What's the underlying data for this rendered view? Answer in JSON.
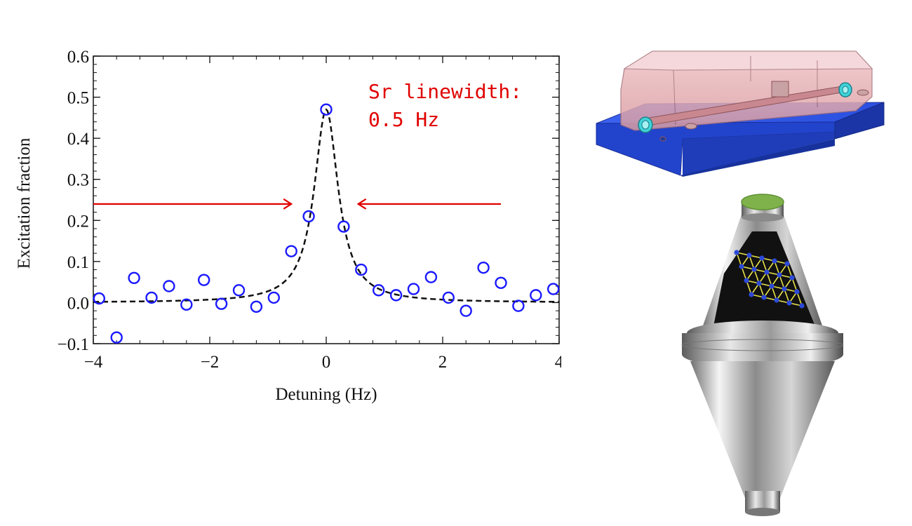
{
  "chart_data": {
    "type": "scatter",
    "title": "",
    "xlabel": "Detuning (Hz)",
    "ylabel": "Excitation fraction",
    "xlim": [
      -4,
      4
    ],
    "ylim": [
      -0.1,
      0.6
    ],
    "xticks": [
      -4,
      -2,
      0,
      2,
      4
    ],
    "xtick_labels": [
      "−4",
      "−2",
      "0",
      "2",
      "4"
    ],
    "yticks": [
      -0.1,
      0.0,
      0.1,
      0.2,
      0.3,
      0.4,
      0.5,
      0.6
    ],
    "ytick_labels": [
      "−0.1",
      "0.0",
      "0.1",
      "0.2",
      "0.3",
      "0.4",
      "0.5",
      "0.6"
    ],
    "grid": false,
    "series": [
      {
        "style": "open-circle markers",
        "color": "#1a1aff",
        "x": [
          -3.9,
          -3.6,
          -3.3,
          -3.0,
          -2.7,
          -2.4,
          -2.1,
          -1.8,
          -1.5,
          -1.2,
          -0.9,
          -0.6,
          -0.3,
          0.0,
          0.3,
          0.6,
          0.9,
          1.2,
          1.5,
          1.8,
          2.1,
          2.4,
          2.7,
          3.0,
          3.3,
          3.6,
          3.9
        ],
        "y": [
          0.01,
          -0.085,
          0.06,
          0.012,
          0.04,
          -0.005,
          0.055,
          -0.003,
          0.03,
          -0.01,
          0.012,
          0.125,
          0.21,
          0.47,
          0.185,
          0.08,
          0.03,
          0.018,
          0.033,
          0.062,
          0.012,
          -0.02,
          0.085,
          0.048,
          -0.008,
          0.018,
          0.033
        ]
      },
      {
        "style": "dashed line",
        "color": "#111111",
        "function": "lorentzian",
        "amplitude": 0.47,
        "center": 0.0,
        "fwhm": 0.5
      }
    ],
    "annotations": [
      {
        "text": "Sr linewidth:",
        "color": "#e00000"
      },
      {
        "text": "0.5  Hz",
        "color": "#e00000"
      }
    ],
    "arrows": [
      {
        "from": [
          -4.0,
          0.24
        ],
        "to": [
          -0.6,
          0.24
        ],
        "color": "#e00000"
      },
      {
        "from": [
          3.0,
          0.24
        ],
        "to": [
          0.55,
          0.24
        ],
        "color": "#e00000"
      }
    ]
  },
  "illustrations": {
    "cavity_icon": "optical-cavity-3d-render",
    "cone_icon": "conical-spacer-with-crystal-lattice"
  },
  "colors": {
    "marker": "#1a1aff",
    "annotation": "#e00000",
    "cavity_base": "#2f56e6",
    "cavity_housing": "#e8aeb3",
    "mirror_green": "#7fb24a",
    "lattice_atom": "#2c49d8",
    "lattice_bond": "#e8e24a"
  }
}
